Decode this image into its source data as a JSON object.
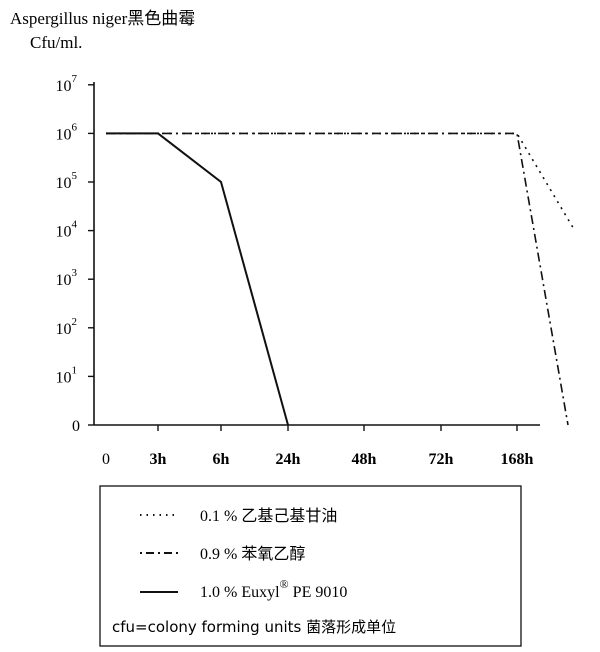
{
  "chart_data": {
    "type": "line",
    "title": "Aspergillus niger黑色曲霉",
    "ylabel": "Cfu/ml.",
    "xlabel": "",
    "y_scale": "log",
    "y_ticks": [
      {
        "label": "0",
        "value": 0
      },
      {
        "label": "10",
        "exp": "1",
        "value": 10
      },
      {
        "label": "10",
        "exp": "2",
        "value": 100
      },
      {
        "label": "10",
        "exp": "3",
        "value": 1000
      },
      {
        "label": "10",
        "exp": "4",
        "value": 10000
      },
      {
        "label": "10",
        "exp": "5",
        "value": 100000
      },
      {
        "label": "10",
        "exp": "6",
        "value": 1000000
      },
      {
        "label": "10",
        "exp": "7",
        "value": 10000000
      }
    ],
    "categories": [
      "0",
      "3h",
      "6h",
      "24h",
      "48h",
      "72h",
      "168h"
    ],
    "series": [
      {
        "name": "0.1 % 乙基己基甘油",
        "style": "dotted",
        "x": [
          "0",
          "3h",
          "168h",
          "after 168h"
        ],
        "x_pos": [
          0,
          1,
          6,
          6.85
        ],
        "values": [
          1000000,
          1000000,
          1000000,
          10000
        ]
      },
      {
        "name": "0.9 % 苯氧乙醇",
        "style": "dashdot",
        "x": [
          "0",
          "3h",
          "168h",
          "after 168h"
        ],
        "x_pos": [
          0,
          1,
          6,
          6.75
        ],
        "values": [
          1000000,
          1000000,
          1000000,
          0
        ]
      },
      {
        "name": "1.0 % Euxyl® PE 9010",
        "style": "solid",
        "x": [
          "0",
          "3h",
          "6h",
          "24h"
        ],
        "x_pos": [
          0,
          1,
          2,
          3
        ],
        "values": [
          1000000,
          1000000,
          100000,
          0
        ]
      }
    ],
    "legend": {
      "placement": "bottom",
      "items": [
        {
          "text": "0.1 % 乙基己基甘油",
          "style": "dotted"
        },
        {
          "text": "0.9 % 苯氧乙醇",
          "style": "dashdot"
        },
        {
          "text": "1.0 % Euxyl",
          "sup": "®",
          "after": " PE 9010",
          "style": "solid"
        }
      ],
      "footnote": "cfu=colony forming units 菌落形成单位"
    }
  }
}
